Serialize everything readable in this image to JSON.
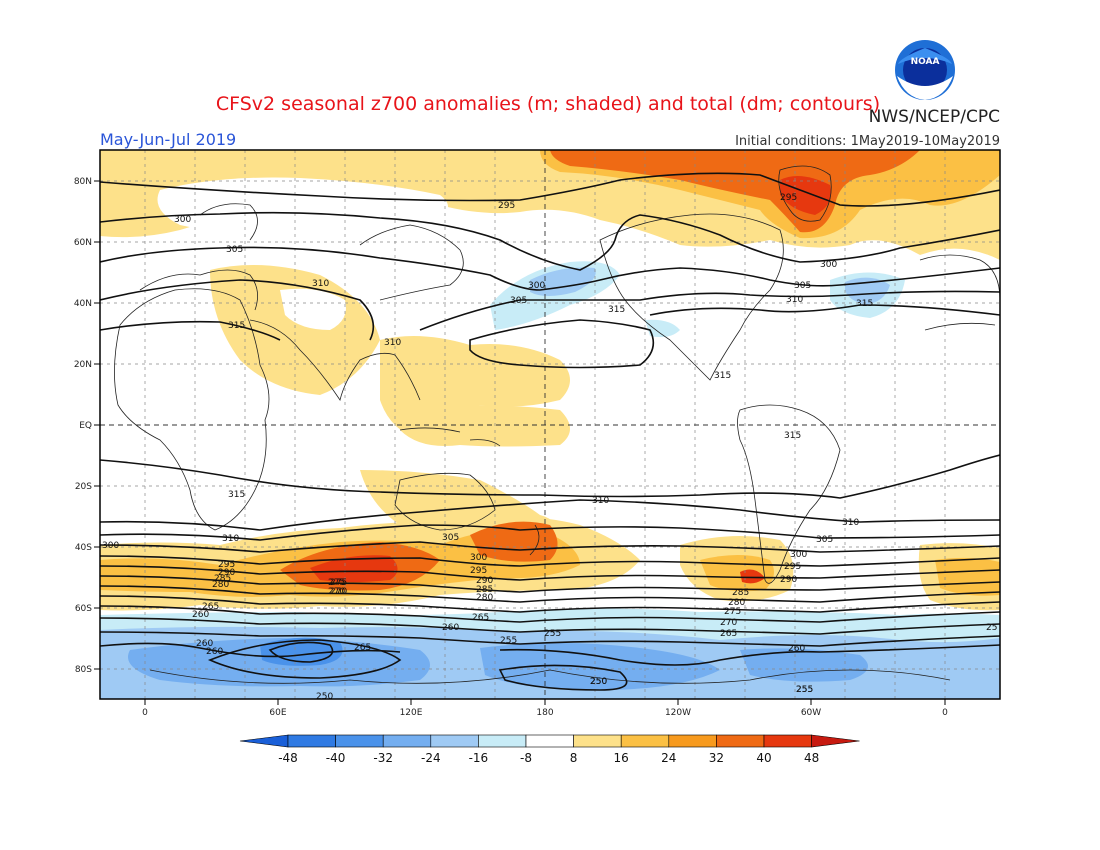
{
  "header": {
    "title": "CFSv2 seasonal z700 anomalies (m; shaded) and total (dm; contours)",
    "agency": "NWS/NCEP/CPC",
    "period": "May-Jun-Jul 2019",
    "initial_conditions": "Initial conditions: 1May2019-10May2019",
    "logo_text": "NOAA"
  },
  "colors": {
    "title": "#e8141a",
    "period": "#2a55d8",
    "text": "#222222"
  },
  "map": {
    "lat_labels": [
      "80N",
      "60N",
      "40N",
      "20N",
      "EQ",
      "20S",
      "40S",
      "60S",
      "80S"
    ],
    "lon_labels": [
      "0",
      "60E",
      "120E",
      "180",
      "120W",
      "60W",
      "0"
    ],
    "contour_labels": [
      "295",
      "300",
      "305",
      "310",
      "315",
      "310",
      "315",
      "300",
      "305",
      "315",
      "295",
      "300",
      "305",
      "310",
      "315",
      "315",
      "315",
      "310",
      "310",
      "310",
      "305",
      "300",
      "295",
      "290",
      "285",
      "280",
      "275",
      "270",
      "265",
      "260",
      "255",
      "250",
      "305",
      "300",
      "295",
      "290",
      "285",
      "280",
      "275",
      "270",
      "265",
      "260",
      "255",
      "250",
      "260",
      "265",
      "260",
      "255",
      "25",
      "300",
      "295",
      "290",
      "285",
      "280",
      "275",
      "270",
      "265",
      "260",
      "250",
      "255"
    ]
  },
  "colorbar": {
    "labels": [
      "-48",
      "-40",
      "-32",
      "-24",
      "-16",
      "-8",
      "8",
      "16",
      "24",
      "32",
      "40",
      "48"
    ],
    "colors": [
      "#1a5fd8",
      "#2f7ae3",
      "#4a92ea",
      "#74aef0",
      "#9fcaf4",
      "#c8ecf7",
      "#ffffff",
      "#fde18a",
      "#fbc044",
      "#f79a1e",
      "#ef6a14",
      "#e6380f",
      "#c71a10"
    ]
  }
}
